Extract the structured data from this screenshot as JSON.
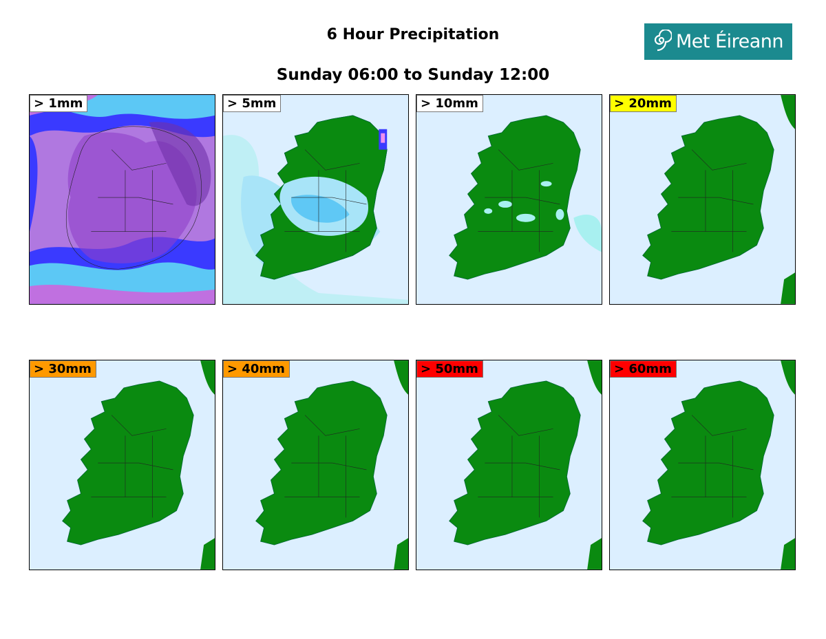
{
  "title": "6 Hour Precipitation",
  "subtitle": "Sunday 06:00 to Sunday 12:00",
  "logo": {
    "text": "Met Éireann",
    "icon": "spiral-logo-icon",
    "bg": "#1b8a8f"
  },
  "colors": {
    "land": "#0a8a10",
    "sea": "#dcefff",
    "light_rain": "#a8f0f0",
    "moderate_rain": "#5fc8f5",
    "heavy_rain": "#1a1aff",
    "very_heavy": "#c070e0",
    "extreme": "#ee90ee"
  },
  "panels": [
    {
      "label": "> 1mm",
      "label_bg": "#ffffff"
    },
    {
      "label": "> 5mm",
      "label_bg": "#ffffff"
    },
    {
      "label": "> 10mm",
      "label_bg": "#ffffff"
    },
    {
      "label": "> 20mm",
      "label_bg": "#ffff00"
    },
    {
      "label": "> 30mm",
      "label_bg": "#ff9900"
    },
    {
      "label": "> 40mm",
      "label_bg": "#ff9900"
    },
    {
      "label": "> 50mm",
      "label_bg": "#ff0000"
    },
    {
      "label": "> 60mm",
      "label_bg": "#ff0000"
    }
  ]
}
